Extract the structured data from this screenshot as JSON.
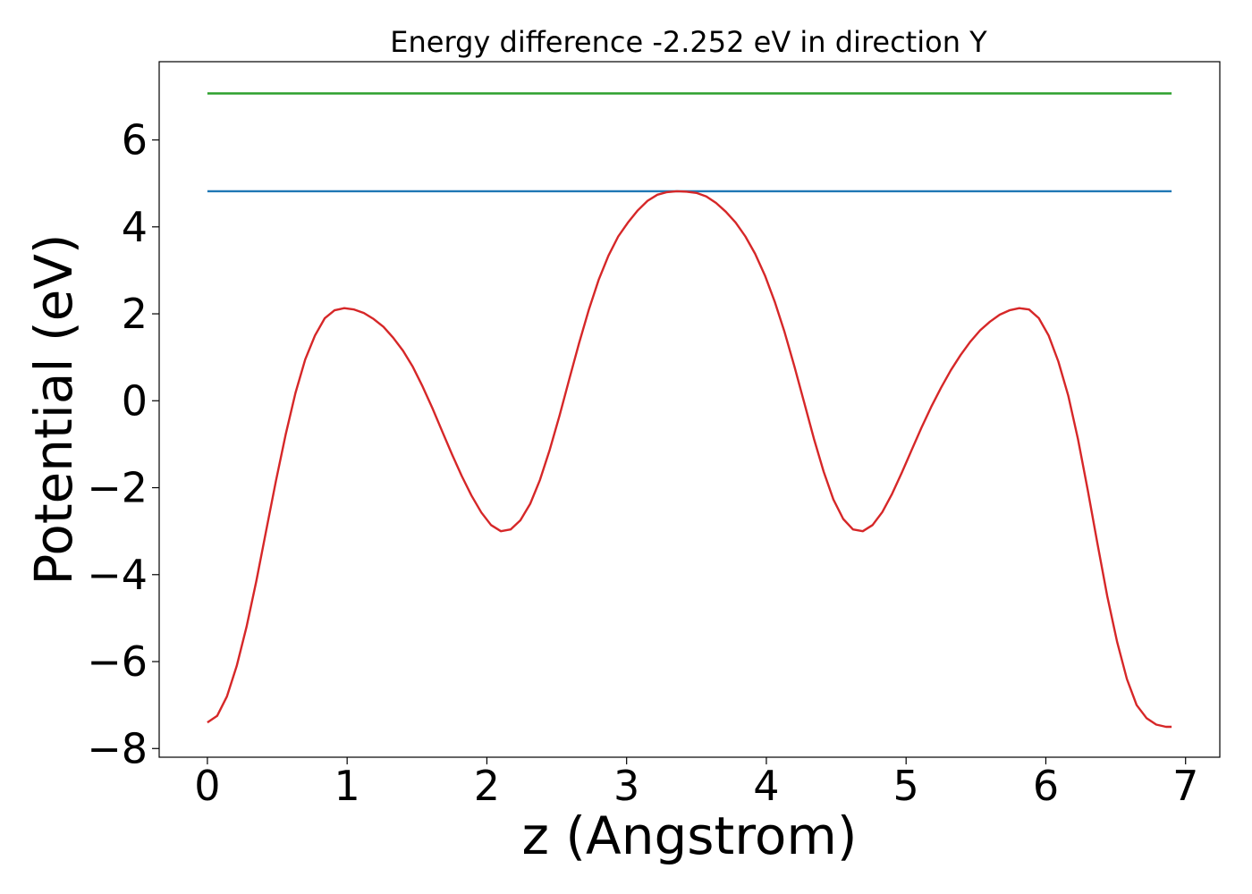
{
  "chart_data": {
    "type": "line",
    "title": "Energy difference -2.252 eV in direction Y",
    "xlabel": "z (Angstrom)",
    "ylabel": "Potential (eV)",
    "xlim": [
      -0.345,
      7.245
    ],
    "ylim": [
      -8.2,
      7.8
    ],
    "xticks": [
      0,
      1,
      2,
      3,
      4,
      5,
      6,
      7
    ],
    "xtick_labels": [
      "0",
      "1",
      "2",
      "3",
      "4",
      "5",
      "6",
      "7"
    ],
    "yticks": [
      -8,
      -6,
      -4,
      -2,
      0,
      2,
      4,
      6
    ],
    "ytick_labels": [
      "−8",
      "−6",
      "−4",
      "−2",
      "0",
      "2",
      "4",
      "6"
    ],
    "grid": false,
    "series": [
      {
        "color": "#2ca02c",
        "x": [
          0,
          6.9
        ],
        "y": [
          7.07,
          7.07
        ]
      },
      {
        "color": "#1f77b4",
        "x": [
          0,
          6.9
        ],
        "y": [
          4.82,
          4.82
        ]
      },
      {
        "color": "#d62728",
        "x": [
          0,
          0.07,
          0.14,
          0.21,
          0.28,
          0.35,
          0.42,
          0.49,
          0.56,
          0.63,
          0.7,
          0.77,
          0.84,
          0.91,
          0.98,
          1.05,
          1.12,
          1.19,
          1.26,
          1.33,
          1.4,
          1.47,
          1.54,
          1.61,
          1.68,
          1.75,
          1.82,
          1.89,
          1.96,
          2.03,
          2.1,
          2.17,
          2.24,
          2.31,
          2.38,
          2.45,
          2.52,
          2.59,
          2.66,
          2.73,
          2.8,
          2.87,
          2.94,
          3.01,
          3.08,
          3.15,
          3.22,
          3.29,
          3.36,
          3.43,
          3.5,
          3.57,
          3.64,
          3.71,
          3.78,
          3.85,
          3.92,
          3.99,
          4.06,
          4.13,
          4.2,
          4.27,
          4.34,
          4.41,
          4.48,
          4.55,
          4.62,
          4.69,
          4.76,
          4.83,
          4.9,
          4.97,
          5.04,
          5.11,
          5.18,
          5.25,
          5.32,
          5.39,
          5.46,
          5.53,
          5.6,
          5.67,
          5.74,
          5.81,
          5.88,
          5.95,
          6.02,
          6.09,
          6.16,
          6.23,
          6.3,
          6.37,
          6.44,
          6.51,
          6.58,
          6.65,
          6.72,
          6.79,
          6.86,
          6.9
        ],
        "y": [
          -7.4,
          -7.25,
          -6.8,
          -6.1,
          -5.2,
          -4.15,
          -3.0,
          -1.85,
          -0.78,
          0.18,
          0.95,
          1.5,
          1.9,
          2.08,
          2.13,
          2.1,
          2.02,
          1.88,
          1.7,
          1.45,
          1.15,
          0.78,
          0.33,
          -0.17,
          -0.7,
          -1.23,
          -1.73,
          -2.18,
          -2.57,
          -2.86,
          -3.0,
          -2.96,
          -2.75,
          -2.37,
          -1.82,
          -1.13,
          -0.34,
          0.5,
          1.33,
          2.1,
          2.78,
          3.34,
          3.78,
          4.1,
          4.38,
          4.6,
          4.74,
          4.8,
          4.82,
          4.81,
          4.78,
          4.7,
          4.55,
          4.35,
          4.1,
          3.78,
          3.38,
          2.88,
          2.28,
          1.58,
          0.8,
          -0.03,
          -0.87,
          -1.63,
          -2.27,
          -2.72,
          -2.96,
          -3.0,
          -2.86,
          -2.56,
          -2.14,
          -1.65,
          -1.13,
          -0.62,
          -0.14,
          0.3,
          0.7,
          1.05,
          1.36,
          1.62,
          1.82,
          1.98,
          2.08,
          2.13,
          2.1,
          1.9,
          1.5,
          0.9,
          0.12,
          -0.88,
          -2.05,
          -3.3,
          -4.5,
          -5.55,
          -6.4,
          -7.0,
          -7.3,
          -7.45,
          -7.5,
          -7.5
        ]
      }
    ]
  }
}
